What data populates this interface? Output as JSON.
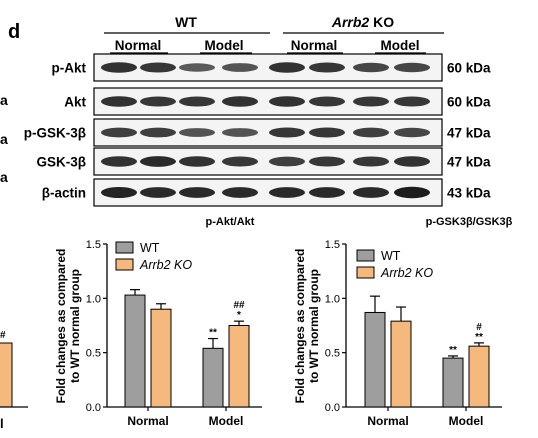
{
  "panel_letter": "d",
  "western_blot": {
    "groups": [
      {
        "label": "WT",
        "label_italic": "",
        "label_suffix": ""
      },
      {
        "label": "",
        "label_italic": "Arrb2",
        "label_suffix": " KO"
      }
    ],
    "conditions": [
      "Normal",
      "Model",
      "Normal",
      "Model"
    ],
    "blots": [
      {
        "name": "p-Akt",
        "size": "60 kDa"
      },
      {
        "name": "Akt",
        "size": "60 kDa"
      },
      {
        "name": "p-GSK-3β",
        "size": "47 kDa"
      },
      {
        "name": "GSK-3β",
        "size": "47 kDa"
      },
      {
        "name": "β-actin",
        "size": "43 kDa"
      }
    ],
    "band_intensity": [
      [
        0.85,
        0.8,
        0.55,
        0.6,
        0.85,
        0.8,
        0.7,
        0.7
      ],
      [
        0.85,
        0.8,
        0.8,
        0.85,
        0.85,
        0.8,
        0.8,
        0.8
      ],
      [
        0.75,
        0.75,
        0.6,
        0.6,
        0.8,
        0.8,
        0.75,
        0.7
      ],
      [
        0.85,
        0.9,
        0.85,
        0.8,
        0.75,
        0.8,
        0.8,
        0.85
      ],
      [
        0.95,
        0.9,
        0.9,
        0.9,
        0.9,
        0.9,
        0.9,
        1.0
      ]
    ]
  },
  "left_cut": {
    "letters": [
      "a",
      "a",
      "a"
    ],
    "annotation": "#",
    "tick_label": "l",
    "bar_color": "#f5b97e"
  },
  "chart_data": [
    {
      "type": "bar",
      "title": "p-Akt/Akt",
      "ylabel_lines": [
        "Fold changes as compared",
        "to WT normal group"
      ],
      "categories": [
        "Normal",
        "Model"
      ],
      "ylim": [
        0,
        1.5
      ],
      "yticks": [
        "0.0",
        "0.5",
        "1.0",
        "1.5"
      ],
      "grid": false,
      "legend": "top-left",
      "series": [
        {
          "name": "WT",
          "name_italic": false,
          "color": "#9e9e9e",
          "values": [
            1.03,
            0.54
          ],
          "errors": [
            0.05,
            0.09
          ],
          "annotations": [
            "",
            "**"
          ]
        },
        {
          "name": "Arrb2 KO",
          "name_italic": true,
          "color": "#f5b97e",
          "values": [
            0.9,
            0.75
          ],
          "errors": [
            0.05,
            0.04
          ],
          "annotations": [
            "",
            "##\n*"
          ]
        }
      ]
    },
    {
      "type": "bar",
      "title": "p-GSK3β/GSK3β",
      "ylabel_lines": [
        "Fold changes as compared",
        "to WT normal group"
      ],
      "categories": [
        "Normal",
        "Model"
      ],
      "ylim": [
        0,
        1.5
      ],
      "yticks": [
        "0.0",
        "0.5",
        "1.0",
        "1.5"
      ],
      "grid": false,
      "legend": "top-left",
      "series": [
        {
          "name": "WT",
          "name_italic": false,
          "color": "#9e9e9e",
          "values": [
            0.87,
            0.45
          ],
          "errors": [
            0.15,
            0.02
          ],
          "annotations": [
            "",
            "**"
          ]
        },
        {
          "name": "Arrb2 KO",
          "name_italic": true,
          "color": "#f5b97e",
          "values": [
            0.79,
            0.56
          ],
          "errors": [
            0.13,
            0.03
          ],
          "annotations": [
            "",
            "#\n**"
          ]
        }
      ]
    }
  ]
}
